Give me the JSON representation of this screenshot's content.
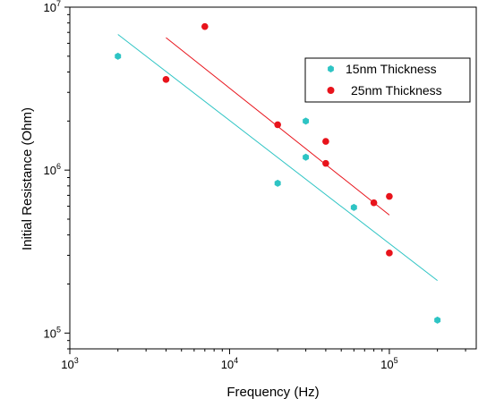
{
  "chart_data": {
    "type": "scatter",
    "xlabel": "Frequency (Hz)",
    "ylabel": "Initial Resistance (Ohm)",
    "xscale": "log",
    "yscale": "log",
    "xlim": [
      1000,
      350000
    ],
    "ylim": [
      80000,
      10000000
    ],
    "xticks": [
      {
        "value": 1000,
        "base": "10",
        "exp": "3"
      },
      {
        "value": 10000,
        "base": "10",
        "exp": "4"
      },
      {
        "value": 100000,
        "base": "10",
        "exp": "5"
      }
    ],
    "yticks": [
      {
        "value": 100000,
        "base": "10",
        "exp": "5"
      },
      {
        "value": 1000000,
        "base": "10",
        "exp": "6"
      },
      {
        "value": 10000000,
        "base": "10",
        "exp": "7"
      }
    ],
    "grid": false,
    "legend_position": "top-right",
    "series": [
      {
        "name": "15nm Thickness",
        "color": "#2ec4c4",
        "marker": "hexagon",
        "x": [
          2000,
          20000,
          30000,
          30000,
          60000,
          200000
        ],
        "y": [
          5000000,
          830000,
          2000000,
          1200000,
          590000,
          120000
        ],
        "fit": {
          "x": [
            2000,
            200000
          ],
          "y": [
            6800000,
            210000
          ]
        }
      },
      {
        "name": "25nm Thickness",
        "color": "#e8131b",
        "marker": "circle",
        "x": [
          4000,
          7000,
          20000,
          40000,
          40000,
          80000,
          100000,
          100000
        ],
        "y": [
          3600000,
          7600000,
          1900000,
          1500000,
          1100000,
          630000,
          690000,
          310000
        ],
        "fit": {
          "x": [
            4000,
            100000
          ],
          "y": [
            6500000,
            530000
          ]
        }
      }
    ]
  }
}
